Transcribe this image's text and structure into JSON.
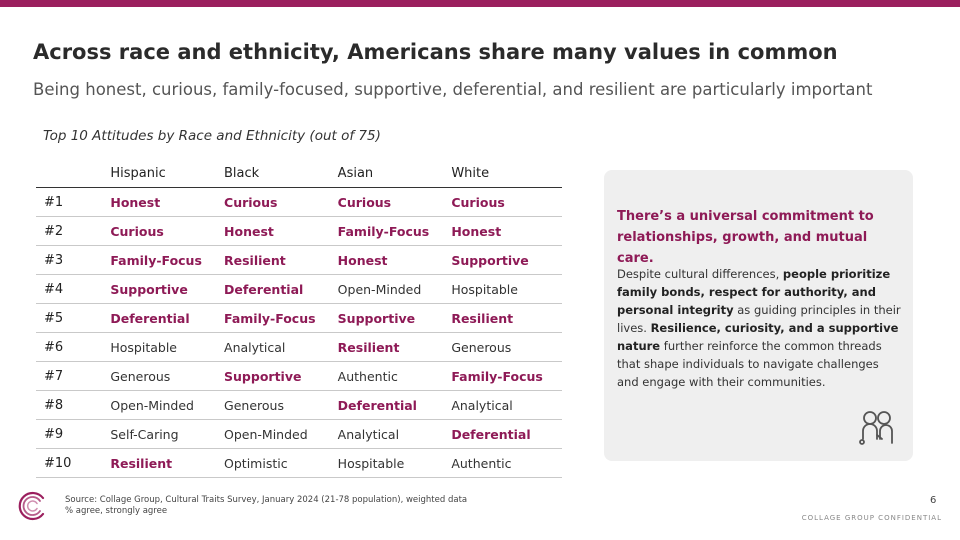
{
  "header": {
    "title": "Across race and ethnicity, Americans share many values in common",
    "subtitle": "Being honest, curious, family-focused, supportive, deferential, and resilient are particularly important"
  },
  "table": {
    "caption": "Top 10 Attitudes by Race and Ethnicity (out of 75)",
    "columns": [
      "",
      "Hispanic",
      "Black",
      "Asian",
      "White"
    ],
    "rows": [
      {
        "rank": "#1",
        "cells": [
          {
            "text": "Honest",
            "hl": true
          },
          {
            "text": "Curious",
            "hl": true
          },
          {
            "text": "Curious",
            "hl": true
          },
          {
            "text": "Curious",
            "hl": true
          }
        ]
      },
      {
        "rank": "#2",
        "cells": [
          {
            "text": "Curious",
            "hl": true
          },
          {
            "text": "Honest",
            "hl": true
          },
          {
            "text": "Family-Focus",
            "hl": true
          },
          {
            "text": "Honest",
            "hl": true
          }
        ]
      },
      {
        "rank": "#3",
        "cells": [
          {
            "text": "Family-Focus",
            "hl": true
          },
          {
            "text": "Resilient",
            "hl": true
          },
          {
            "text": "Honest",
            "hl": true
          },
          {
            "text": "Supportive",
            "hl": true
          }
        ]
      },
      {
        "rank": "#4",
        "cells": [
          {
            "text": "Supportive",
            "hl": true
          },
          {
            "text": "Deferential",
            "hl": true
          },
          {
            "text": "Open-Minded",
            "hl": false
          },
          {
            "text": "Hospitable",
            "hl": false
          }
        ]
      },
      {
        "rank": "#5",
        "cells": [
          {
            "text": "Deferential",
            "hl": true
          },
          {
            "text": "Family-Focus",
            "hl": true
          },
          {
            "text": "Supportive",
            "hl": true
          },
          {
            "text": "Resilient",
            "hl": true
          }
        ]
      },
      {
        "rank": "#6",
        "cells": [
          {
            "text": "Hospitable",
            "hl": false
          },
          {
            "text": "Analytical",
            "hl": false
          },
          {
            "text": "Resilient",
            "hl": true
          },
          {
            "text": "Generous",
            "hl": false
          }
        ]
      },
      {
        "rank": "#7",
        "cells": [
          {
            "text": "Generous",
            "hl": false
          },
          {
            "text": "Supportive",
            "hl": true
          },
          {
            "text": "Authentic",
            "hl": false
          },
          {
            "text": "Family-Focus",
            "hl": true
          }
        ]
      },
      {
        "rank": "#8",
        "cells": [
          {
            "text": "Open-Minded",
            "hl": false
          },
          {
            "text": "Generous",
            "hl": false
          },
          {
            "text": "Deferential",
            "hl": true
          },
          {
            "text": "Analytical",
            "hl": false
          }
        ]
      },
      {
        "rank": "#9",
        "cells": [
          {
            "text": "Self-Caring",
            "hl": false
          },
          {
            "text": "Open-Minded",
            "hl": false
          },
          {
            "text": "Analytical",
            "hl": false
          },
          {
            "text": "Deferential",
            "hl": true
          }
        ]
      },
      {
        "rank": "#10",
        "cells": [
          {
            "text": "Resilient",
            "hl": true
          },
          {
            "text": "Optimistic",
            "hl": false
          },
          {
            "text": "Hospitable",
            "hl": false
          },
          {
            "text": "Authentic",
            "hl": false
          }
        ]
      }
    ]
  },
  "callout": {
    "headline": "There’s a universal commitment to relationships, growth, and mutual care.",
    "body": [
      {
        "t": "Despite cultural differences, ",
        "b": false
      },
      {
        "t": "people prioritize family bonds, respect for authority, and personal integrity",
        "b": true
      },
      {
        "t": " as guiding principles in their lives. ",
        "b": false
      },
      {
        "t": "Resilience, curiosity, and a supportive nature",
        "b": true
      },
      {
        "t": " further reinforce the common threads that shape individuals to navigate challenges and engage with their communities.",
        "b": false
      }
    ],
    "icon": "people-icon"
  },
  "footer": {
    "source_line1": "Source: Collage Group, Cultural Traits Survey, January 2024 (21-78 population), weighted data",
    "source_line2": "% agree, strongly agree",
    "page_number": "6",
    "confidential": "COLLAGE GROUP CONFIDENTIAL",
    "logo_icon": "collage-logo-icon"
  },
  "colors": {
    "accent": "#9b1f5e",
    "highlight_text": "#8e1a56",
    "panel_bg": "#efefef"
  }
}
